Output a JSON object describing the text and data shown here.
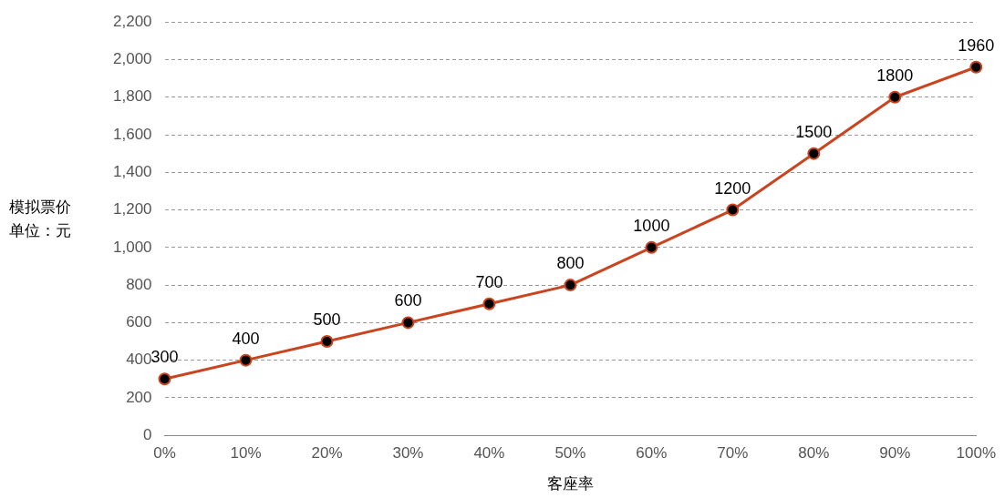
{
  "chart_data": {
    "type": "line",
    "xlabel": "客座率",
    "ylabel": "模拟票价单位：元",
    "categories": [
      "0%",
      "10%",
      "20%",
      "30%",
      "40%",
      "50%",
      "60%",
      "70%",
      "80%",
      "90%",
      "100%"
    ],
    "series": [
      {
        "color": "#c9441f",
        "values": [
          300,
          400,
          500,
          600,
          700,
          800,
          1000,
          1200,
          1500,
          1800,
          1960
        ]
      }
    ],
    "ylim": [
      0,
      2200
    ],
    "yticks": [
      0,
      200,
      400,
      600,
      800,
      {
        "value": 1000,
        "label": "1,000"
      },
      {
        "value": 1200,
        "label": "1,200"
      },
      {
        "value": 1400,
        "label": "1,400"
      },
      {
        "value": 1600,
        "label": "1,600"
      },
      {
        "value": 1800,
        "label": "1,800"
      },
      {
        "value": 2000,
        "label": "2,000"
      },
      {
        "value": 2200,
        "label": "2,200"
      }
    ],
    "grid": "y",
    "legend": false,
    "marker": "circle",
    "line_style": "solid",
    "data_labels": true
  }
}
